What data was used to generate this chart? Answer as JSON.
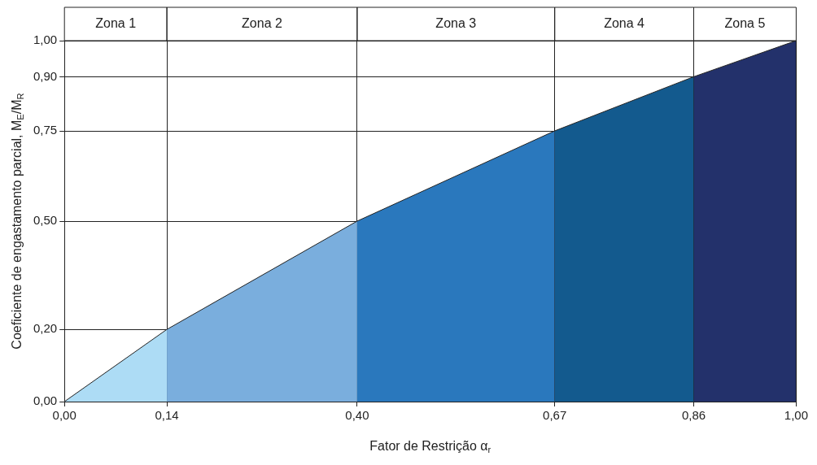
{
  "chart_data": {
    "type": "area",
    "xlabel": "Fator de Restrição α$_{r}$",
    "ylabel": "Coeficiente de engastamento parcial, M$_{E}$/M$_{R}$",
    "xlim": [
      0,
      1
    ],
    "ylim": [
      0,
      1
    ],
    "xticks": [
      {
        "value": 0,
        "label": "0,00"
      },
      {
        "value": 0.14,
        "label": "0,14"
      },
      {
        "value": 0.4,
        "label": "0,40"
      },
      {
        "value": 0.67,
        "label": "0,67"
      },
      {
        "value": 0.86,
        "label": "0,86"
      },
      {
        "value": 1,
        "label": "1,00"
      }
    ],
    "yticks": [
      {
        "value": 0,
        "label": "0,00"
      },
      {
        "value": 0.2,
        "label": "0,20"
      },
      {
        "value": 0.5,
        "label": "0,50"
      },
      {
        "value": 0.75,
        "label": "0,75"
      },
      {
        "value": 0.9,
        "label": "0,90"
      },
      {
        "value": 1,
        "label": "1,00"
      }
    ],
    "grid": true,
    "series": [
      {
        "color": "#addcf5",
        "x": [
          0,
          0.14
        ],
        "values": [
          0,
          0.2
        ]
      },
      {
        "color": "#7aaedd",
        "x": [
          0.14,
          0.4
        ],
        "values": [
          0.2,
          0.5
        ]
      },
      {
        "color": "#2a78bd",
        "x": [
          0.4,
          0.67
        ],
        "values": [
          0.5,
          0.75
        ]
      },
      {
        "color": "#135a8e",
        "x": [
          0.67,
          0.86
        ],
        "values": [
          0.75,
          0.9
        ]
      },
      {
        "color": "#23316b",
        "x": [
          0.86,
          1
        ],
        "values": [
          0.9,
          1
        ]
      }
    ],
    "annotations": [
      "Zona 1",
      "Zona 2",
      "Zona 3",
      "Zona 4",
      "Zona 5"
    ]
  }
}
